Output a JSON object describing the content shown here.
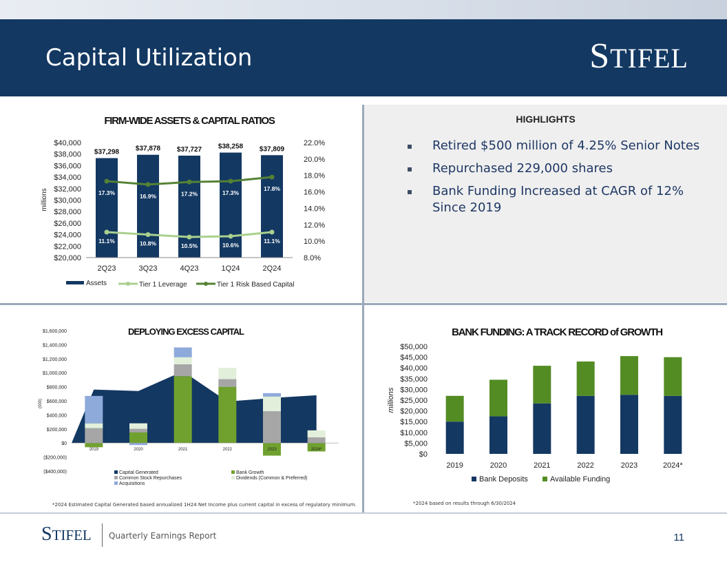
{
  "header": {
    "title": "Capital Utilization",
    "logo": "Stifel"
  },
  "highlights": {
    "title": "HIGHLIGHTS",
    "items": [
      "Retired $500 million of 4.25% Senior Notes",
      "Repurchased 229,000 shares",
      "Bank Funding Increased at CAGR of 12% Since 2019"
    ]
  },
  "chart_data": [
    {
      "type": "bar",
      "title": "FIRM-WIDE ASSETS & CAPITAL RATIOS",
      "ylabel": "millions",
      "categories": [
        "2Q23",
        "3Q23",
        "4Q23",
        "1Q24",
        "2Q24"
      ],
      "ylim": [
        20000,
        40000
      ],
      "y_ticks": [
        "$40,000",
        "$38,000",
        "$36,000",
        "$34,000",
        "$32,000",
        "$30,000",
        "$28,000",
        "$26,000",
        "$24,000",
        "$22,000",
        "$20,000"
      ],
      "y2lim": [
        8.0,
        22.0
      ],
      "y2_ticks": [
        "22.0%",
        "20.0%",
        "18.0%",
        "16.0%",
        "14.0%",
        "12.0%",
        "10.0%",
        "8.0%"
      ],
      "series": [
        {
          "name": "Assets",
          "type": "bar",
          "color": "#133862",
          "values": [
            37298,
            37878,
            37727,
            38258,
            37809
          ],
          "labels": [
            "$37,298",
            "$37,878",
            "$37,727",
            "$38,258",
            "$37,809"
          ]
        },
        {
          "name": "Tier 1 Leverage",
          "type": "line",
          "axis": "secondary",
          "color": "#a9d08e",
          "values": [
            11.1,
            10.8,
            10.5,
            10.6,
            11.1
          ],
          "labels": [
            "11.1%",
            "10.8%",
            "10.5%",
            "10.6%",
            "11.1%"
          ]
        },
        {
          "name": "Tier 1 Risk Based Capital",
          "type": "line",
          "axis": "secondary",
          "color": "#548235",
          "values": [
            17.3,
            16.9,
            17.2,
            17.3,
            17.8
          ],
          "labels": [
            "17.3%",
            "16.9%",
            "17.2%",
            "17.3%",
            "17.8%"
          ]
        }
      ],
      "legend": "bottom"
    },
    {
      "type": "area",
      "title": "DEPLOYING EXCESS CAPITAL",
      "ylabel": "(000)",
      "categories": [
        "2019",
        "2020",
        "2021",
        "2022",
        "2023",
        "2024*"
      ],
      "ylim": [
        -400000,
        1600000
      ],
      "y_ticks": [
        "$1,600,000",
        "$1,400,000",
        "$1,200,000",
        "$1,000,000",
        "$800,000",
        "$600,000",
        "$400,000",
        "$200,000",
        "$0",
        "($200,000)",
        "($400,000)"
      ],
      "series": [
        {
          "name": "Capital Generated",
          "type": "area",
          "color": "#133862",
          "values": [
            760000,
            740000,
            1020000,
            590000,
            640000,
            680000
          ]
        },
        {
          "name": "Bank Growth",
          "type": "bar",
          "color": "#70a12e",
          "values": [
            -60000,
            150000,
            950000,
            800000,
            -180000,
            -120000
          ]
        },
        {
          "name": "Common Stock Repurchases",
          "type": "bar",
          "color": "#a6a6a6",
          "values": [
            210000,
            50000,
            170000,
            110000,
            450000,
            80000
          ]
        },
        {
          "name": "Dividends (Common & Preferred)",
          "type": "bar",
          "color": "#e2efda",
          "values": [
            70000,
            80000,
            100000,
            160000,
            210000,
            100000
          ]
        },
        {
          "name": "Acquisitions",
          "type": "bar",
          "color": "#8eaadb",
          "values": [
            390000,
            -30000,
            140000,
            0,
            50000,
            0
          ]
        }
      ],
      "legend": "bottom"
    },
    {
      "type": "bar",
      "title": "BANK FUNDING: A TRACK RECORD of GROWTH",
      "ylabel": "millions",
      "categories": [
        "2019",
        "2020",
        "2021",
        "2022",
        "2023",
        "2024*"
      ],
      "ylim": [
        0,
        50000
      ],
      "y_ticks": [
        "$50,000",
        "$45,000",
        "$40,000",
        "$35,000",
        "$30,000",
        "$25,000",
        "$20,000",
        "$15,000",
        "$10,000",
        "$5,000",
        "$0"
      ],
      "series": [
        {
          "name": "Bank Deposits",
          "color": "#133862",
          "values": [
            15000,
            17500,
            23500,
            27000,
            27500,
            27000
          ]
        },
        {
          "name": "Available Funding",
          "color": "#548c24",
          "values": [
            12000,
            17000,
            17500,
            16000,
            18000,
            18000
          ]
        }
      ],
      "legend": "bottom"
    }
  ],
  "footnotes": {
    "left": "*2024 Estimated Capital Generated based annualized 1H24 Net Income plus current capital in excess of regulatory minimum.",
    "right": "*2024 based on results through 6/30/2024"
  },
  "footer": {
    "logo": "Stifel",
    "text": "Quarterly Earnings Report",
    "page": "11"
  }
}
